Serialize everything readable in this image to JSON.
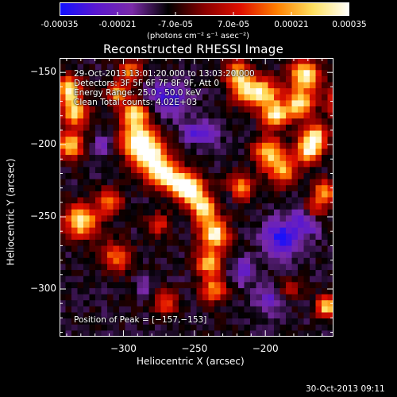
{
  "colorbar": {
    "tick_labels": [
      "-0.00035",
      "-0.00021",
      "-7.0e-05",
      "7.0e-05",
      "0.00021",
      "0.00035"
    ],
    "tick_values": [
      -0.00035,
      -0.00021,
      -7e-05,
      7e-05,
      0.00021,
      0.00035
    ],
    "units": "(photons cm⁻² s⁻¹ asec⁻²)",
    "colors": [
      "#1010ff",
      "#5a18d0",
      "#7a2aa8",
      "#000000",
      "#8a0000",
      "#e01000",
      "#ff8000",
      "#ffe060",
      "#ffffff"
    ]
  },
  "chart_data": {
    "type": "heatmap",
    "title": "Reconstructed RHESSI Image",
    "xlabel": "Heliocentric X (arcsec)",
    "ylabel": "Heliocentric Y (arcsec)",
    "xlim": [
      -345,
      -152
    ],
    "ylim": [
      -333,
      -140
    ],
    "xticks": [
      -300,
      -250,
      -200
    ],
    "yticks": [
      -150,
      -200,
      -250,
      -300
    ],
    "xtick_labels": [
      "−300",
      "−250",
      "−200"
    ],
    "ytick_labels": [
      "−150",
      "−200",
      "−250",
      "−300"
    ],
    "value_range": [
      -0.00035,
      0.00035
    ],
    "peak_position": [
      -157,
      -153
    ],
    "annotations": [
      "29-Oct-2013 13:01:20.000 to 13:03:20.000",
      "Detectors: 3F 5F 6F 7F 8F 9F, Att 0",
      "Energy Range: 25.0 - 50.0 keV",
      "Clean    Total counts: 4.02E+03"
    ],
    "peak_label": "Position of Peak = [−157,−153]"
  },
  "footer": {
    "timestamp": "30-Oct-2013 09:11"
  }
}
